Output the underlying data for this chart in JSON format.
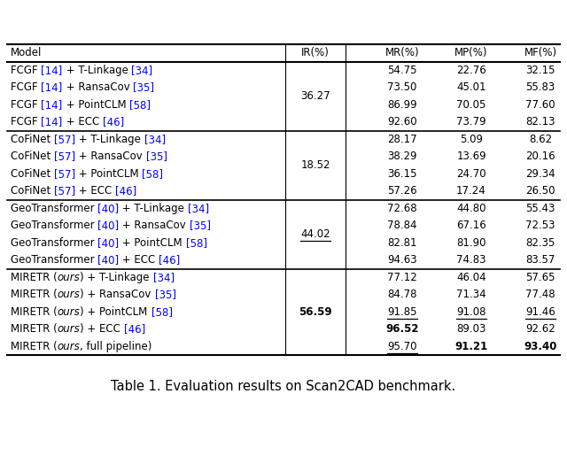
{
  "title": "Table 1. Evaluation results on Scan2CAD benchmark.",
  "bg_color": "#ffffff",
  "text_color": "#000000",
  "blue_color": "#1c86ee",
  "font_size": 8.5,
  "title_font_size": 10.5,
  "groups": [
    {
      "rows": [
        {
          "model_parts": [
            [
              "FCGF ",
              "black"
            ],
            [
              "[14]",
              "blue"
            ],
            [
              " + T-Linkage ",
              "black"
            ],
            [
              "[34]",
              "blue"
            ]
          ],
          "mr": "54.75",
          "mp": "22.76",
          "mf": "32.15",
          "mr_bold": false,
          "mp_bold": false,
          "mf_bold": false,
          "mr_ul": false,
          "mp_ul": false,
          "mf_ul": false
        },
        {
          "model_parts": [
            [
              "FCGF ",
              "black"
            ],
            [
              "[14]",
              "blue"
            ],
            [
              " + RansaCov ",
              "black"
            ],
            [
              "[35]",
              "blue"
            ]
          ],
          "mr": "73.50",
          "mp": "45.01",
          "mf": "55.83",
          "mr_bold": false,
          "mp_bold": false,
          "mf_bold": false,
          "mr_ul": false,
          "mp_ul": false,
          "mf_ul": false
        },
        {
          "model_parts": [
            [
              "FCGF ",
              "black"
            ],
            [
              "[14]",
              "blue"
            ],
            [
              " + PointCLM ",
              "black"
            ],
            [
              "[58]",
              "blue"
            ]
          ],
          "mr": "86.99",
          "mp": "70.05",
          "mf": "77.60",
          "mr_bold": false,
          "mp_bold": false,
          "mf_bold": false,
          "mr_ul": false,
          "mp_ul": false,
          "mf_ul": false
        },
        {
          "model_parts": [
            [
              "FCGF ",
              "black"
            ],
            [
              "[14]",
              "blue"
            ],
            [
              " + ECC ",
              "black"
            ],
            [
              "[46]",
              "blue"
            ]
          ],
          "mr": "92.60",
          "mp": "73.79",
          "mf": "82.13",
          "mr_bold": false,
          "mp_bold": false,
          "mf_bold": false,
          "mr_ul": false,
          "mp_ul": false,
          "mf_ul": false
        }
      ],
      "ir_value": "36.27",
      "ir_bold": false,
      "ir_ul": false
    },
    {
      "rows": [
        {
          "model_parts": [
            [
              "CoFiNet ",
              "black"
            ],
            [
              "[57]",
              "blue"
            ],
            [
              " + T-Linkage ",
              "black"
            ],
            [
              "[34]",
              "blue"
            ]
          ],
          "mr": "28.17",
          "mp": "5.09",
          "mf": "8.62",
          "mr_bold": false,
          "mp_bold": false,
          "mf_bold": false,
          "mr_ul": false,
          "mp_ul": false,
          "mf_ul": false
        },
        {
          "model_parts": [
            [
              "CoFiNet ",
              "black"
            ],
            [
              "[57]",
              "blue"
            ],
            [
              " + RansaCov ",
              "black"
            ],
            [
              "[35]",
              "blue"
            ]
          ],
          "mr": "38.29",
          "mp": "13.69",
          "mf": "20.16",
          "mr_bold": false,
          "mp_bold": false,
          "mf_bold": false,
          "mr_ul": false,
          "mp_ul": false,
          "mf_ul": false
        },
        {
          "model_parts": [
            [
              "CoFiNet ",
              "black"
            ],
            [
              "[57]",
              "blue"
            ],
            [
              " + PointCLM ",
              "black"
            ],
            [
              "[58]",
              "blue"
            ]
          ],
          "mr": "36.15",
          "mp": "24.70",
          "mf": "29.34",
          "mr_bold": false,
          "mp_bold": false,
          "mf_bold": false,
          "mr_ul": false,
          "mp_ul": false,
          "mf_ul": false
        },
        {
          "model_parts": [
            [
              "CoFiNet ",
              "black"
            ],
            [
              "[57]",
              "blue"
            ],
            [
              " + ECC ",
              "black"
            ],
            [
              "[46]",
              "blue"
            ]
          ],
          "mr": "57.26",
          "mp": "17.24",
          "mf": "26.50",
          "mr_bold": false,
          "mp_bold": false,
          "mf_bold": false,
          "mr_ul": false,
          "mp_ul": false,
          "mf_ul": false
        }
      ],
      "ir_value": "18.52",
      "ir_bold": false,
      "ir_ul": false
    },
    {
      "rows": [
        {
          "model_parts": [
            [
              "GeoTransformer ",
              "black"
            ],
            [
              "[40]",
              "blue"
            ],
            [
              " + T-Linkage ",
              "black"
            ],
            [
              "[34]",
              "blue"
            ]
          ],
          "mr": "72.68",
          "mp": "44.80",
          "mf": "55.43",
          "mr_bold": false,
          "mp_bold": false,
          "mf_bold": false,
          "mr_ul": false,
          "mp_ul": false,
          "mf_ul": false
        },
        {
          "model_parts": [
            [
              "GeoTransformer ",
              "black"
            ],
            [
              "[40]",
              "blue"
            ],
            [
              " + RansaCov ",
              "black"
            ],
            [
              "[35]",
              "blue"
            ]
          ],
          "mr": "78.84",
          "mp": "67.16",
          "mf": "72.53",
          "mr_bold": false,
          "mp_bold": false,
          "mf_bold": false,
          "mr_ul": false,
          "mp_ul": false,
          "mf_ul": false
        },
        {
          "model_parts": [
            [
              "GeoTransformer ",
              "black"
            ],
            [
              "[40]",
              "blue"
            ],
            [
              " + PointCLM ",
              "black"
            ],
            [
              "[58]",
              "blue"
            ]
          ],
          "mr": "82.81",
          "mp": "81.90",
          "mf": "82.35",
          "mr_bold": false,
          "mp_bold": false,
          "mf_bold": false,
          "mr_ul": false,
          "mp_ul": false,
          "mf_ul": false
        },
        {
          "model_parts": [
            [
              "GeoTransformer ",
              "black"
            ],
            [
              "[40]",
              "blue"
            ],
            [
              " + ECC ",
              "black"
            ],
            [
              "[46]",
              "blue"
            ]
          ],
          "mr": "94.63",
          "mp": "74.83",
          "mf": "83.57",
          "mr_bold": false,
          "mp_bold": false,
          "mf_bold": false,
          "mr_ul": false,
          "mp_ul": false,
          "mf_ul": false
        }
      ],
      "ir_value": "44.02",
      "ir_bold": false,
      "ir_ul": true
    },
    {
      "rows": [
        {
          "model_parts": [
            [
              "MIRETR (",
              "black"
            ],
            [
              "ours",
              "black",
              "italic"
            ],
            [
              ") + T-Linkage ",
              "black"
            ],
            [
              "[34]",
              "blue"
            ]
          ],
          "mr": "77.12",
          "mp": "46.04",
          "mf": "57.65",
          "mr_bold": false,
          "mp_bold": false,
          "mf_bold": false,
          "mr_ul": false,
          "mp_ul": false,
          "mf_ul": false
        },
        {
          "model_parts": [
            [
              "MIRETR (",
              "black"
            ],
            [
              "ours",
              "black",
              "italic"
            ],
            [
              ") + RansaCov ",
              "black"
            ],
            [
              "[35]",
              "blue"
            ]
          ],
          "mr": "84.78",
          "mp": "71.34",
          "mf": "77.48",
          "mr_bold": false,
          "mp_bold": false,
          "mf_bold": false,
          "mr_ul": false,
          "mp_ul": false,
          "mf_ul": false
        },
        {
          "model_parts": [
            [
              "MIRETR (",
              "black"
            ],
            [
              "ours",
              "black",
              "italic"
            ],
            [
              ") + PointCLM ",
              "black"
            ],
            [
              "[58]",
              "blue"
            ]
          ],
          "mr": "91.85",
          "mp": "91.08",
          "mf": "91.46",
          "mr_bold": false,
          "mp_bold": false,
          "mf_bold": false,
          "mr_ul": true,
          "mp_ul": true,
          "mf_ul": true
        },
        {
          "model_parts": [
            [
              "MIRETR (",
              "black"
            ],
            [
              "ours",
              "black",
              "italic"
            ],
            [
              ") + ECC ",
              "black"
            ],
            [
              "[46]",
              "blue"
            ]
          ],
          "mr": "96.52",
          "mp": "89.03",
          "mf": "92.62",
          "mr_bold": true,
          "mp_bold": false,
          "mf_bold": false,
          "mr_ul": false,
          "mp_ul": false,
          "mf_ul": false
        },
        {
          "model_parts": [
            [
              "MIRETR (",
              "black"
            ],
            [
              "ours",
              "black",
              "italic"
            ],
            [
              ", full pipeline)",
              "black"
            ]
          ],
          "mr": "95.70",
          "mp": "91.21",
          "mf": "93.40",
          "mr_bold": false,
          "mp_bold": true,
          "mf_bold": true,
          "mr_ul": true,
          "mp_ul": false,
          "mf_ul": false
        }
      ],
      "ir_value": "56.59",
      "ir_bold": true,
      "ir_ul": false
    }
  ]
}
